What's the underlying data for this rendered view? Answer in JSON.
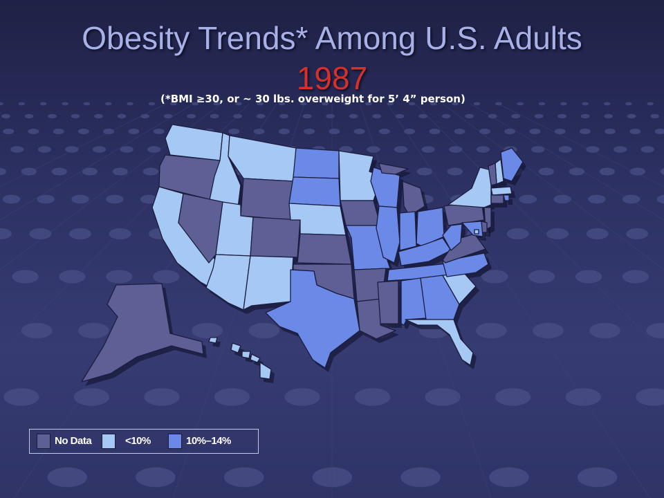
{
  "slide": {
    "title": "Obesity Trends* Among U.S. Adults",
    "year": "1987",
    "footnote": "(*BMI ≥30, or ~ 30 lbs. overweight for 5’ 4” person)"
  },
  "colors": {
    "no_data": "#5e5f95",
    "lt10": "#a6c8f4",
    "p10_14": "#6b8ae8",
    "border": "#1c1d3e",
    "year": "#d7302c",
    "title": "#a8b0e8"
  },
  "legend": [
    {
      "label": "No Data",
      "color": "#5e5f95"
    },
    {
      "label": "<10%",
      "color": "#a6c8f4"
    },
    {
      "label": "10%–14%",
      "color": "#6b8ae8"
    }
  ],
  "states": {
    "WA": "lt10",
    "OR": "no_data",
    "CA": "lt10",
    "ID": "lt10",
    "NV": "no_data",
    "MT": "lt10",
    "WY": "no_data",
    "UT": "lt10",
    "AZ": "lt10",
    "CO": "no_data",
    "NM": "lt10",
    "ND": "p10_14",
    "SD": "p10_14",
    "NE": "lt10",
    "KS": "no_data",
    "OK": "no_data",
    "TX": "p10_14",
    "MN": "lt10",
    "IA": "no_data",
    "MO": "p10_14",
    "AR": "no_data",
    "LA": "no_data",
    "WI": "p10_14",
    "IL": "p10_14",
    "MI": "no_data",
    "IN": "p10_14",
    "OH": "p10_14",
    "KY": "p10_14",
    "TN": "p10_14",
    "MS": "no_data",
    "AL": "p10_14",
    "GA": "p10_14",
    "FL": "lt10",
    "SC": "lt10",
    "NC": "p10_14",
    "VA": "no_data",
    "WV": "p10_14",
    "PA": "no_data",
    "NY": "lt10",
    "ME": "p10_14",
    "NH": "lt10",
    "VT": "no_data",
    "MA": "lt10",
    "RI": "p10_14",
    "CT": "no_data",
    "NJ": "no_data",
    "DE": "no_data",
    "MD": "p10_14",
    "DC": "lt10",
    "AK": "no_data",
    "HI": "lt10"
  }
}
